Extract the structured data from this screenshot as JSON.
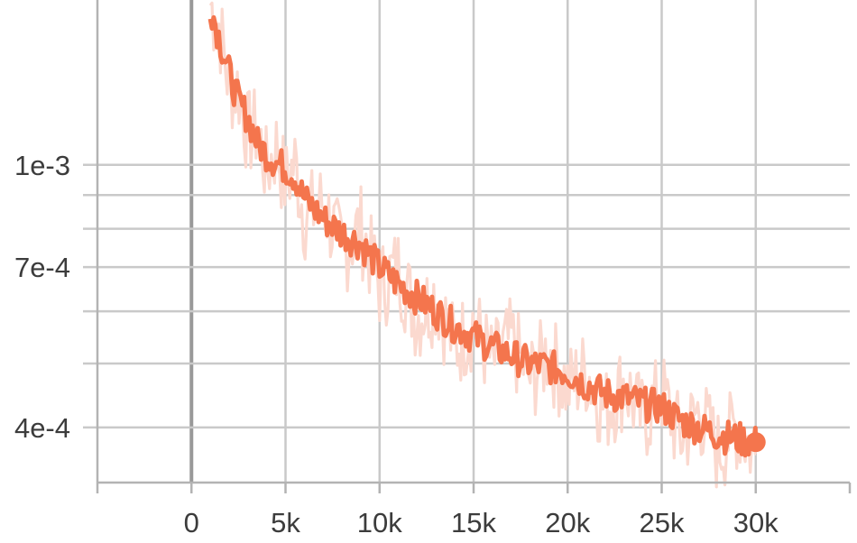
{
  "chart_data": {
    "type": "line",
    "title": "",
    "xlabel": "",
    "ylabel": "",
    "x_ticks": [
      "0",
      "5k",
      "10k",
      "15k",
      "20k",
      "25k",
      "30k"
    ],
    "x_tick_values": [
      0,
      5000,
      10000,
      15000,
      20000,
      25000,
      30000
    ],
    "y_ticks": [
      "1e-3",
      "7e-4",
      "4e-4"
    ],
    "y_tick_values": [
      0.001,
      0.0007,
      0.0004
    ],
    "y_scale": "log",
    "y_minor_gridlines": [
      0.0009,
      0.0008,
      0.0006,
      0.0005
    ],
    "xlim": [
      -5000,
      35000
    ],
    "ylim": [
      0.00033,
      0.00175
    ],
    "grid": true,
    "series": [
      {
        "role": "smoothed",
        "color": "#f4754d",
        "x": [
          1000,
          1500,
          2000,
          2500,
          3000,
          3500,
          4000,
          4500,
          5000,
          5500,
          6000,
          7000,
          8000,
          9000,
          10000,
          11000,
          12000,
          13000,
          14000,
          15000,
          16000,
          17000,
          18000,
          19000,
          20000,
          21000,
          22000,
          23000,
          24000,
          25000,
          26000,
          27000,
          28000,
          29000,
          30000
        ],
        "values": [
          0.00175,
          0.00155,
          0.00138,
          0.00125,
          0.00118,
          0.00108,
          0.00104,
          0.00101,
          0.00099,
          0.00096,
          0.00089,
          0.00083,
          0.00079,
          0.00076,
          0.0007,
          0.00066,
          0.00063,
          0.0006,
          0.00057,
          0.00055,
          0.00053,
          0.000515,
          0.0005,
          0.000495,
          0.000485,
          0.000465,
          0.00045,
          0.000445,
          0.000435,
          0.00043,
          0.00041,
          0.0004,
          0.00039,
          0.000385,
          0.00038
        ]
      },
      {
        "role": "raw",
        "color": "#fbd9cf",
        "x": [
          1000,
          1500,
          2000,
          2500,
          3000,
          3500,
          4000,
          4500,
          5000,
          5500,
          6000,
          7000,
          8000,
          9000,
          10000,
          11000,
          12000,
          13000,
          14000,
          15000,
          16000,
          17000,
          18000,
          19000,
          20000,
          21000,
          22000,
          23000,
          24000,
          25000,
          26000,
          27000,
          28000,
          29000,
          30000
        ],
        "values": [
          0.00175,
          0.00162,
          0.00132,
          0.00131,
          0.00112,
          0.00114,
          0.00098,
          0.00107,
          0.00094,
          0.00101,
          0.00084,
          0.00088,
          0.00074,
          0.00081,
          0.00066,
          0.0007,
          0.00059,
          0.00064,
          0.00053,
          0.00058,
          0.0005,
          0.000545,
          0.000475,
          0.000525,
          0.00046,
          0.00049,
          0.000425,
          0.00047,
          0.00041,
          0.000455,
          0.000385,
          0.000425,
          0.00037,
          0.000405,
          0.000365
        ]
      }
    ],
    "end_marker": {
      "x": 30000,
      "y": 0.00038
    }
  }
}
